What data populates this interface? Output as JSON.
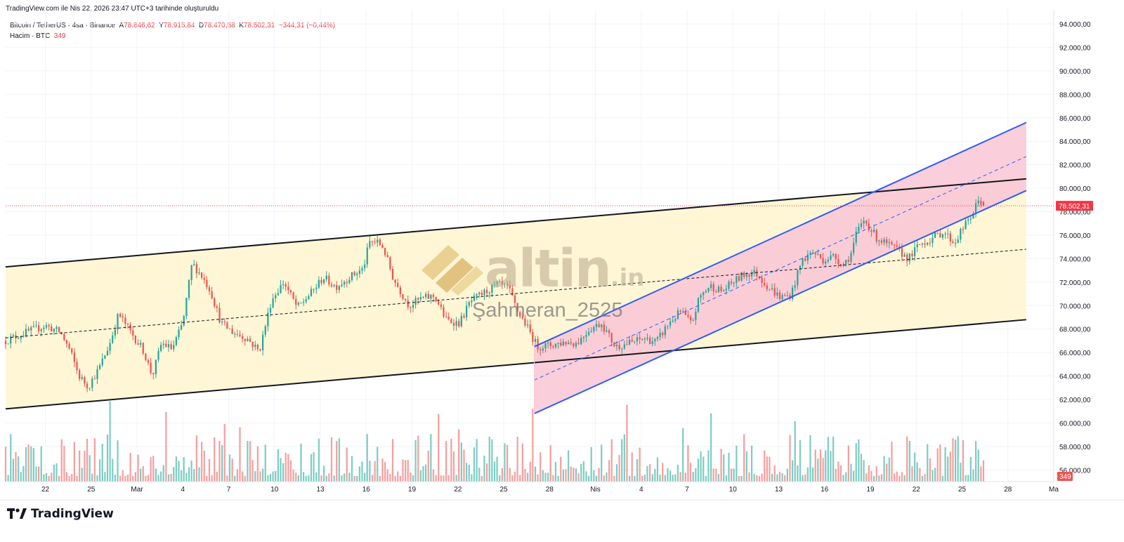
{
  "header": {
    "top_note": "TradingView.com ile Nis 22, 2026 23:47 UTC+3 tarihinde oluşturuldu",
    "symbol_line": "Bitcoin / TetherUS · 4sa · Binance",
    "o_label": "A",
    "o_value": "78.846,62",
    "h_label": "Y",
    "h_value": "78.915,84",
    "l_label": "D",
    "l_value": "78.470,58",
    "c_label": "K",
    "c_value": "78.502,31",
    "change": "−344,31 (−0,44%)",
    "volume_label": "Hacim · BTC",
    "volume_value": "349"
  },
  "watermark": {
    "brand": "altin",
    "suffix": ".in",
    "author": "Şahmeran_2525"
  },
  "footer": {
    "brand": "TradingView"
  },
  "colors": {
    "up": "#26a69a",
    "down": "#ef5350",
    "vol_up": "#7fcdc3",
    "vol_down": "#f4a09f",
    "wide_channel_fill": "#fff6d5",
    "narrow_channel_fill": "#f9c9d6",
    "narrow_channel_line": "#2f5df5",
    "last_price": "#f23645"
  },
  "chart_data": {
    "type": "candlestick",
    "y_ticks": [
      "56.000,00",
      "58.000,00",
      "60.000,00",
      "62.000,00",
      "64.000,00",
      "66.000,00",
      "68.000,00",
      "70.000,00",
      "72.000,00",
      "74.000,00",
      "76.000,00",
      "78.000,00",
      "80.000,00",
      "82.000,00",
      "84.000,00",
      "86.000,00",
      "88.000,00",
      "90.000,00",
      "92.000,00",
      "94.000,00"
    ],
    "y_tick_values": [
      56000,
      58000,
      60000,
      62000,
      64000,
      66000,
      68000,
      70000,
      72000,
      74000,
      76000,
      78000,
      80000,
      82000,
      84000,
      86000,
      88000,
      90000,
      92000,
      94000
    ],
    "ylim": [
      55000,
      95200
    ],
    "x_ticks": [
      "22",
      "25",
      "Mar",
      "4",
      "7",
      "10",
      "13",
      "16",
      "19",
      "22",
      "25",
      "28",
      "Nis",
      "4",
      "7",
      "10",
      "13",
      "16",
      "19",
      "22",
      "25",
      "28",
      "Ma"
    ],
    "x_tick_days": [
      0,
      3,
      6,
      9,
      12,
      15,
      18,
      21,
      24,
      27,
      30,
      33,
      36,
      39,
      42,
      45,
      48,
      51,
      54,
      57,
      60,
      63,
      66
    ],
    "xlim_days": [
      -2.6,
      66.0
    ],
    "last_price_label": "78.502,31",
    "last_price": 78502.31,
    "last_volume_label": "349",
    "price_path": [
      [
        -2.6,
        67000
      ],
      [
        -1.5,
        67600
      ],
      [
        0,
        68300
      ],
      [
        1,
        67700
      ],
      [
        1.6,
        66200
      ],
      [
        2.2,
        64000
      ],
      [
        2.8,
        63100
      ],
      [
        3.5,
        64600
      ],
      [
        4.2,
        66700
      ],
      [
        4.8,
        69300
      ],
      [
        5.5,
        67900
      ],
      [
        6.4,
        66200
      ],
      [
        7.0,
        64000
      ],
      [
        7.6,
        66800
      ],
      [
        8.3,
        66300
      ],
      [
        9.0,
        68500
      ],
      [
        9.6,
        73600
      ],
      [
        10.2,
        72600
      ],
      [
        10.8,
        71300
      ],
      [
        11.5,
        68500
      ],
      [
        12.3,
        67700
      ],
      [
        13.2,
        67200
      ],
      [
        14.0,
        66100
      ],
      [
        14.8,
        70500
      ],
      [
        15.6,
        72000
      ],
      [
        16.5,
        69800
      ],
      [
        17.4,
        71100
      ],
      [
        18.2,
        72400
      ],
      [
        19.0,
        71600
      ],
      [
        20.0,
        72500
      ],
      [
        20.8,
        73100
      ],
      [
        21.2,
        75400
      ],
      [
        21.7,
        75400
      ],
      [
        22.1,
        75000
      ],
      [
        22.8,
        72200
      ],
      [
        23.8,
        70000
      ],
      [
        24.6,
        70600
      ],
      [
        25.5,
        70800
      ],
      [
        26.2,
        68800
      ],
      [
        27.1,
        68500
      ],
      [
        27.8,
        70300
      ],
      [
        28.6,
        71000
      ],
      [
        29.6,
        71800
      ],
      [
        30.3,
        71500
      ],
      [
        30.9,
        69500
      ],
      [
        31.4,
        68500
      ],
      [
        32.2,
        66500
      ],
      [
        33.0,
        66600
      ],
      [
        34.0,
        66900
      ],
      [
        34.8,
        66800
      ],
      [
        35.6,
        68000
      ],
      [
        36.4,
        68500
      ],
      [
        37.3,
        66500
      ],
      [
        38.2,
        66800
      ],
      [
        39.2,
        67200
      ],
      [
        40.0,
        66900
      ],
      [
        40.8,
        68500
      ],
      [
        41.6,
        69500
      ],
      [
        42.3,
        68400
      ],
      [
        42.8,
        70700
      ],
      [
        43.5,
        71700
      ],
      [
        44.3,
        71200
      ],
      [
        45.0,
        72000
      ],
      [
        45.8,
        72700
      ],
      [
        46.5,
        72800
      ],
      [
        47.3,
        71600
      ],
      [
        48.1,
        70700
      ],
      [
        48.8,
        70900
      ],
      [
        49.5,
        73800
      ],
      [
        50.2,
        74600
      ],
      [
        50.9,
        73900
      ],
      [
        51.6,
        74200
      ],
      [
        52.2,
        73500
      ],
      [
        52.7,
        74300
      ],
      [
        53.1,
        76200
      ],
      [
        53.6,
        77300
      ],
      [
        54.4,
        75800
      ],
      [
        55.1,
        75200
      ],
      [
        55.8,
        74700
      ],
      [
        56.5,
        74000
      ],
      [
        57.2,
        75200
      ],
      [
        58.0,
        75700
      ],
      [
        58.8,
        76300
      ],
      [
        59.5,
        75300
      ],
      [
        59.9,
        76300
      ],
      [
        60.6,
        77600
      ],
      [
        61.1,
        79000
      ],
      [
        61.5,
        78500
      ]
    ],
    "wide_channel": {
      "upper": [
        [
          -2.6,
          73300
        ],
        [
          64.2,
          80800
        ]
      ],
      "lower": [
        [
          -2.6,
          61200
        ],
        [
          64.2,
          68800
        ]
      ],
      "mid": [
        [
          -2.6,
          67250
        ],
        [
          64.2,
          74800
        ]
      ]
    },
    "narrow_channel": {
      "start_day": 32.0,
      "end_day": 64.2,
      "upper": [
        [
          32.0,
          66500
        ],
        [
          64.2,
          85600
        ]
      ],
      "lower": [
        [
          32.0,
          60800
        ],
        [
          64.2,
          79800
        ]
      ],
      "mid": [
        [
          32.0,
          63650
        ],
        [
          64.2,
          82700
        ]
      ]
    }
  }
}
